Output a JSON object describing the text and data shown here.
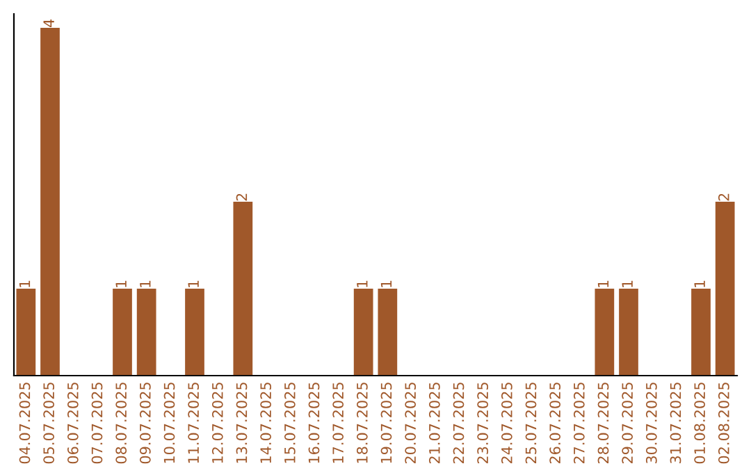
{
  "chart_data": {
    "type": "bar",
    "categories": [
      "04.07.2025",
      "05.07.2025",
      "06.07.2025",
      "07.07.2025",
      "08.07.2025",
      "09.07.2025",
      "10.07.2025",
      "11.07.2025",
      "12.07.2025",
      "13.07.2025",
      "14.07.2025",
      "15.07.2025",
      "16.07.2025",
      "17.07.2025",
      "18.07.2025",
      "19.07.2025",
      "20.07.2025",
      "21.07.2025",
      "22.07.2025",
      "23.07.2025",
      "24.07.2025",
      "25.07.2025",
      "26.07.2025",
      "27.07.2025",
      "28.07.2025",
      "29.07.2025",
      "30.07.2025",
      "31.07.2025",
      "01.08.2025",
      "02.08.2025"
    ],
    "values": [
      1,
      4,
      0,
      0,
      1,
      1,
      0,
      1,
      0,
      2,
      0,
      0,
      0,
      0,
      1,
      1,
      0,
      0,
      0,
      0,
      0,
      0,
      0,
      0,
      1,
      1,
      0,
      0,
      1,
      2
    ],
    "value_labels": [
      "1",
      "4",
      null,
      null,
      "1",
      "1",
      null,
      "1",
      null,
      "2",
      null,
      null,
      null,
      null,
      "1",
      "1",
      null,
      null,
      null,
      null,
      null,
      null,
      null,
      null,
      "1",
      "1",
      null,
      null,
      "1",
      "2"
    ],
    "color": "#a0582a",
    "grid": false,
    "legend": false
  }
}
